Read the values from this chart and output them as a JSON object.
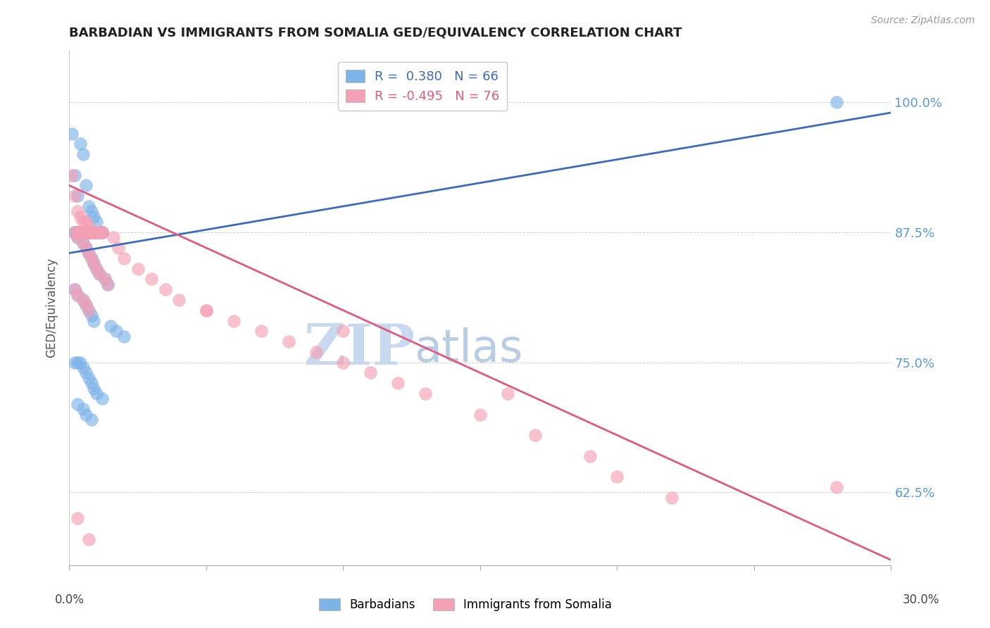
{
  "title": "BARBADIAN VS IMMIGRANTS FROM SOMALIA GED/EQUIVALENCY CORRELATION CHART",
  "source": "Source: ZipAtlas.com",
  "ylabel": "GED/Equivalency",
  "ytick_labels": [
    "100.0%",
    "87.5%",
    "75.0%",
    "62.5%"
  ],
  "ytick_values": [
    1.0,
    0.875,
    0.75,
    0.625
  ],
  "xlim": [
    0.0,
    0.3
  ],
  "ylim": [
    0.555,
    1.05
  ],
  "legend_blue_r": "0.380",
  "legend_blue_n": "66",
  "legend_pink_r": "-0.495",
  "legend_pink_n": "76",
  "blue_color": "#7eb3e8",
  "pink_color": "#f4a0b5",
  "blue_line_color": "#3a6bbf",
  "pink_line_color": "#e05a80",
  "watermark_zip": "ZIP",
  "watermark_atlas": "atlas",
  "watermark_color_zip": "#c8d8ee",
  "watermark_color_atlas": "#b8cce4",
  "background_color": "#ffffff",
  "blue_scatter_x": [
    0.001,
    0.002,
    0.003,
    0.004,
    0.005,
    0.006,
    0.007,
    0.008,
    0.009,
    0.01,
    0.003,
    0.004,
    0.005,
    0.006,
    0.007,
    0.008,
    0.009,
    0.01,
    0.011,
    0.012,
    0.002,
    0.004,
    0.005,
    0.006,
    0.007,
    0.008,
    0.009,
    0.01,
    0.011,
    0.012,
    0.003,
    0.005,
    0.006,
    0.007,
    0.008,
    0.009,
    0.01,
    0.011,
    0.013,
    0.014,
    0.002,
    0.003,
    0.005,
    0.006,
    0.007,
    0.008,
    0.009,
    0.015,
    0.017,
    0.02,
    0.002,
    0.003,
    0.004,
    0.005,
    0.006,
    0.007,
    0.008,
    0.009,
    0.01,
    0.012,
    0.003,
    0.005,
    0.006,
    0.008,
    0.28,
    0.002
  ],
  "blue_scatter_y": [
    0.97,
    0.93,
    0.91,
    0.96,
    0.95,
    0.92,
    0.9,
    0.895,
    0.89,
    0.885,
    0.875,
    0.875,
    0.875,
    0.875,
    0.875,
    0.875,
    0.875,
    0.875,
    0.875,
    0.875,
    0.875,
    0.875,
    0.875,
    0.875,
    0.875,
    0.875,
    0.875,
    0.875,
    0.875,
    0.875,
    0.87,
    0.865,
    0.86,
    0.855,
    0.85,
    0.845,
    0.84,
    0.835,
    0.83,
    0.825,
    0.82,
    0.815,
    0.81,
    0.805,
    0.8,
    0.795,
    0.79,
    0.785,
    0.78,
    0.775,
    0.75,
    0.75,
    0.75,
    0.745,
    0.74,
    0.735,
    0.73,
    0.725,
    0.72,
    0.715,
    0.71,
    0.705,
    0.7,
    0.695,
    1.0,
    0.875
  ],
  "pink_scatter_x": [
    0.001,
    0.002,
    0.003,
    0.004,
    0.005,
    0.006,
    0.007,
    0.008,
    0.009,
    0.01,
    0.003,
    0.004,
    0.005,
    0.006,
    0.007,
    0.008,
    0.009,
    0.01,
    0.011,
    0.012,
    0.002,
    0.004,
    0.005,
    0.006,
    0.007,
    0.008,
    0.009,
    0.01,
    0.011,
    0.012,
    0.003,
    0.005,
    0.006,
    0.007,
    0.008,
    0.009,
    0.01,
    0.011,
    0.013,
    0.014,
    0.002,
    0.003,
    0.005,
    0.006,
    0.007,
    0.016,
    0.018,
    0.02,
    0.025,
    0.03,
    0.035,
    0.04,
    0.05,
    0.06,
    0.07,
    0.08,
    0.09,
    0.1,
    0.11,
    0.12,
    0.13,
    0.15,
    0.17,
    0.19,
    0.2,
    0.22,
    0.05,
    0.1,
    0.16,
    0.28,
    0.004,
    0.006,
    0.008,
    0.01,
    0.003,
    0.007
  ],
  "pink_scatter_y": [
    0.93,
    0.91,
    0.895,
    0.89,
    0.885,
    0.885,
    0.88,
    0.875,
    0.875,
    0.875,
    0.875,
    0.875,
    0.875,
    0.875,
    0.875,
    0.875,
    0.875,
    0.875,
    0.875,
    0.875,
    0.875,
    0.875,
    0.875,
    0.875,
    0.875,
    0.875,
    0.875,
    0.875,
    0.875,
    0.875,
    0.87,
    0.865,
    0.86,
    0.855,
    0.85,
    0.845,
    0.84,
    0.835,
    0.83,
    0.825,
    0.82,
    0.815,
    0.81,
    0.805,
    0.8,
    0.87,
    0.86,
    0.85,
    0.84,
    0.83,
    0.82,
    0.81,
    0.8,
    0.79,
    0.78,
    0.77,
    0.76,
    0.75,
    0.74,
    0.73,
    0.72,
    0.7,
    0.68,
    0.66,
    0.64,
    0.62,
    0.8,
    0.78,
    0.72,
    0.63,
    0.875,
    0.875,
    0.875,
    0.875,
    0.6,
    0.58
  ],
  "blue_trendline_x": [
    0.0,
    0.3
  ],
  "blue_trendline_y": [
    0.855,
    0.99
  ],
  "pink_trendline_x": [
    0.0,
    0.3
  ],
  "pink_trendline_y": [
    0.92,
    0.56
  ]
}
